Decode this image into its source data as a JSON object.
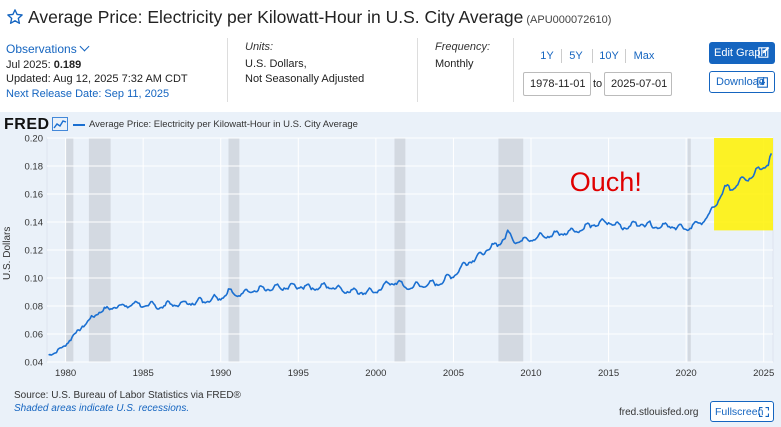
{
  "header": {
    "title": "Average Price: Electricity per Kilowatt-Hour in U.S. City Average",
    "series_id": "(APU000072610)",
    "favorite_icon": "star-outline-icon"
  },
  "observations": {
    "toggle_label": "Observations",
    "latest_label": "Jul 2025:",
    "latest_value": "0.189",
    "updated": "Updated: Aug 12, 2025 7:32 AM CDT",
    "next_release": "Next Release Date: Sep 11, 2025"
  },
  "units": {
    "label": "Units:",
    "line1": "U.S. Dollars,",
    "line2": "Not Seasonally Adjusted"
  },
  "frequency": {
    "label": "Frequency:",
    "value": "Monthly"
  },
  "range": {
    "buttons": [
      "1Y",
      "5Y",
      "10Y",
      "Max"
    ],
    "start": "1978-11-01",
    "to_label": "to",
    "end": "2025-07-01"
  },
  "actions": {
    "edit_label": "Edit Graph",
    "download_label": "Download"
  },
  "chart_header": {
    "logo": "FRED",
    "legend": "Average Price: Electricity per Kilowatt-Hour in U.S. City Average"
  },
  "footer": {
    "source": "Source: U.S. Bureau of Labor Statistics via FRED®",
    "shaded_note": "Shaded areas indicate U.S. recessions.",
    "site": "fred.stlouisfed.org",
    "fullscreen_label": "Fullscreen"
  },
  "chart_data": {
    "type": "line",
    "title": "",
    "xlabel": "",
    "ylabel": "U.S. Dollars",
    "xlim": [
      1978.8,
      2025.6
    ],
    "ylim": [
      0.04,
      0.2
    ],
    "x_ticks": [
      1980,
      1985,
      1990,
      1995,
      2000,
      2005,
      2010,
      2015,
      2020,
      2025
    ],
    "y_ticks": [
      0.04,
      0.06,
      0.08,
      0.1,
      0.12,
      0.14,
      0.16,
      0.18,
      0.2
    ],
    "y_tick_labels": [
      "0.04",
      "0.06",
      "0.08",
      "0.10",
      "0.12",
      "0.14",
      "0.16",
      "0.18",
      "0.20"
    ],
    "grid": true,
    "line_color": "#1a6fd1",
    "recessions": [
      [
        1980.0,
        1980.5
      ],
      [
        1981.5,
        1982.9
      ],
      [
        1990.5,
        1991.2
      ],
      [
        2001.2,
        2001.9
      ],
      [
        2007.9,
        2009.5
      ],
      [
        2020.1,
        2020.3
      ]
    ],
    "series": [
      {
        "name": "Average Price: Electricity per Kilowatt-Hour in U.S. City Average",
        "x": [
          1978.9,
          1979.5,
          1980.0,
          1980.5,
          1981.0,
          1981.5,
          1982.0,
          1982.5,
          1983.0,
          1983.5,
          1984.0,
          1984.5,
          1985.0,
          1985.5,
          1986.0,
          1986.5,
          1987.0,
          1988.0,
          1989.0,
          1990.0,
          1990.5,
          1991.0,
          1992.0,
          1993.0,
          1994.0,
          1995.0,
          1996.0,
          1997.0,
          1998.0,
          1999.0,
          2000.0,
          2000.5,
          2001.0,
          2001.5,
          2002.0,
          2003.0,
          2004.0,
          2005.0,
          2006.0,
          2006.5,
          2007.0,
          2008.0,
          2008.5,
          2009.0,
          2010.0,
          2011.0,
          2012.0,
          2013.0,
          2014.0,
          2015.0,
          2016.0,
          2017.0,
          2018.0,
          2019.0,
          2020.0,
          2021.0,
          2021.5,
          2022.0,
          2022.5,
          2023.0,
          2023.5,
          2024.0,
          2024.5,
          2025.0,
          2025.3,
          2025.5
        ],
        "values": [
          0.045,
          0.047,
          0.052,
          0.058,
          0.064,
          0.069,
          0.074,
          0.077,
          0.078,
          0.08,
          0.079,
          0.082,
          0.079,
          0.08,
          0.078,
          0.08,
          0.08,
          0.081,
          0.083,
          0.085,
          0.089,
          0.087,
          0.09,
          0.091,
          0.092,
          0.093,
          0.092,
          0.093,
          0.09,
          0.089,
          0.089,
          0.093,
          0.096,
          0.095,
          0.092,
          0.094,
          0.095,
          0.101,
          0.111,
          0.113,
          0.118,
          0.124,
          0.131,
          0.125,
          0.127,
          0.129,
          0.131,
          0.133,
          0.137,
          0.139,
          0.135,
          0.138,
          0.136,
          0.136,
          0.134,
          0.139,
          0.144,
          0.153,
          0.163,
          0.163,
          0.169,
          0.17,
          0.175,
          0.178,
          0.181,
          0.189
        ]
      }
    ],
    "highlight": {
      "x_range": [
        2021.8,
        2025.6
      ],
      "y_range": [
        0.134,
        0.2
      ],
      "color": "#fff200"
    },
    "annotation": {
      "text": "Ouch!",
      "x": 2012.5,
      "y": 0.162,
      "color": "#e00000"
    }
  }
}
